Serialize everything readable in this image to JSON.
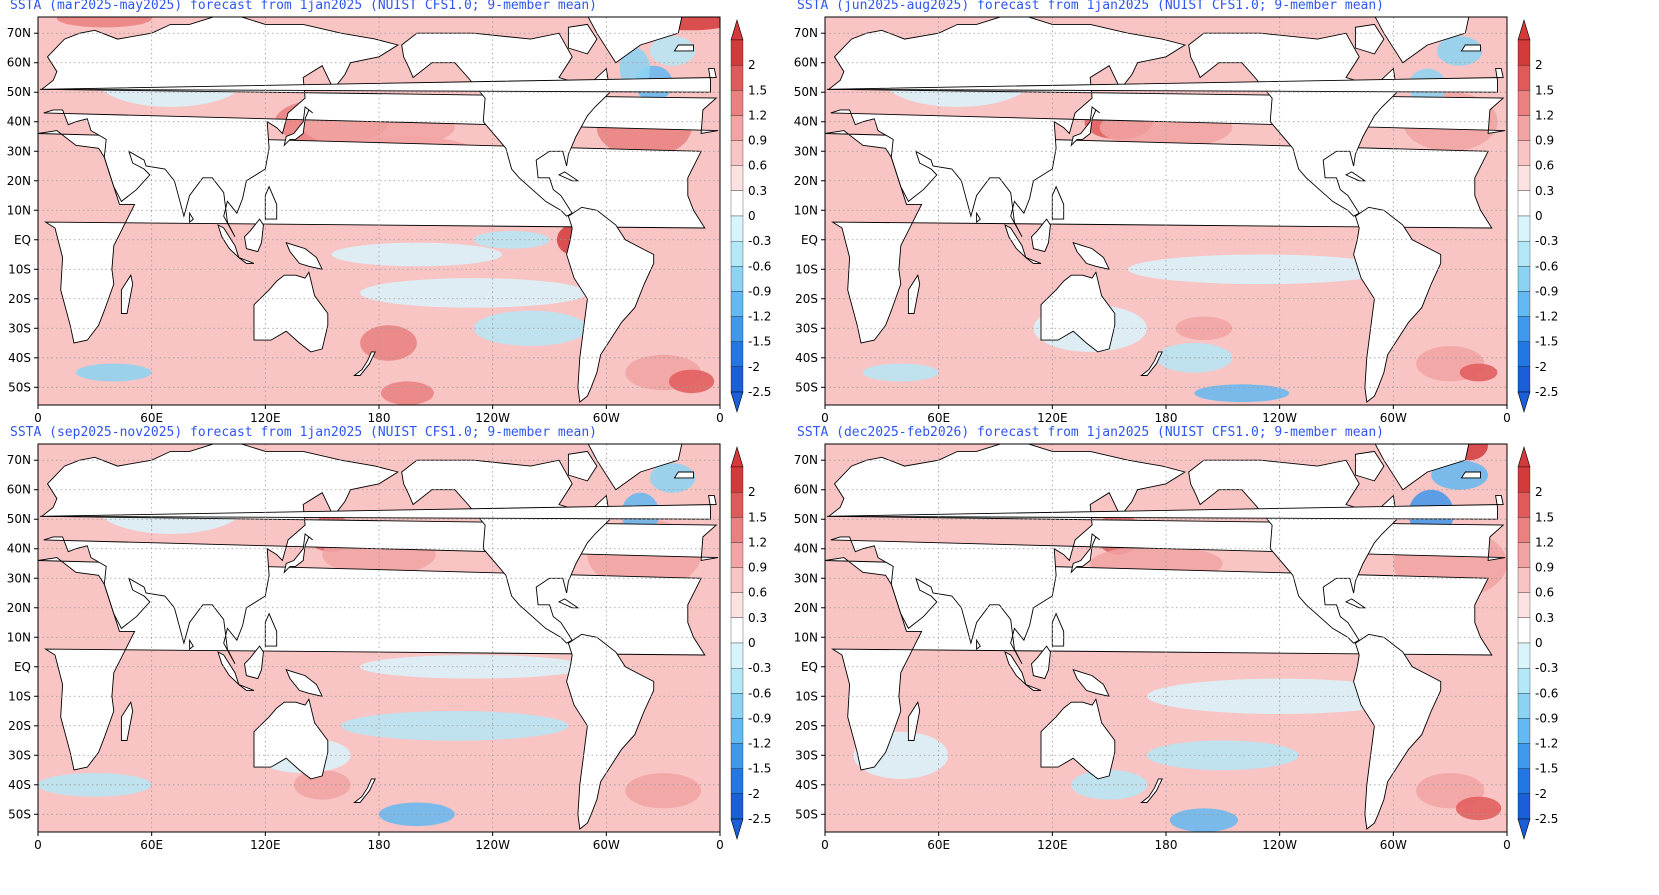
{
  "panels": [
    {
      "id": "p1",
      "title": "SSTA (mar2025-may2025) forecast from 1jan2025 (NUIST CFS1.0; 9-member mean)"
    },
    {
      "id": "p2",
      "title": "SSTA (jun2025-aug2025) forecast from 1jan2025 (NUIST CFS1.0; 9-member mean)"
    },
    {
      "id": "p3",
      "title": "SSTA (sep2025-nov2025) forecast from 1jan2025 (NUIST CFS1.0; 9-member mean)"
    },
    {
      "id": "p4",
      "title": "SSTA (dec2025-feb2026) forecast from 1jan2025 (NUIST CFS1.0; 9-member mean)"
    }
  ],
  "lat_labels": [
    "70N",
    "60N",
    "50N",
    "40N",
    "30N",
    "20N",
    "10N",
    "EQ",
    "10S",
    "20S",
    "30S",
    "40S",
    "50S"
  ],
  "lon_labels": [
    "0",
    "60E",
    "120E",
    "180",
    "120W",
    "60W",
    "0"
  ],
  "colorbar": {
    "labels": [
      "2",
      "1.5",
      "1.2",
      "0.9",
      "0.6",
      "0.3",
      "0",
      "-0.3",
      "-0.6",
      "-0.9",
      "-1.2",
      "-1.5",
      "-2",
      "-2.5"
    ],
    "colors": [
      "#d33a3a",
      "#e05a5a",
      "#ea8080",
      "#f2a3a3",
      "#f8c4c4",
      "#fde2e2",
      "#ffffff",
      "#d9f5fb",
      "#b5e8f6",
      "#8cd3f3",
      "#63b9f1",
      "#3f98ec",
      "#2377e5",
      "#1a5fd8"
    ]
  },
  "title_color": "#2f56f0"
}
